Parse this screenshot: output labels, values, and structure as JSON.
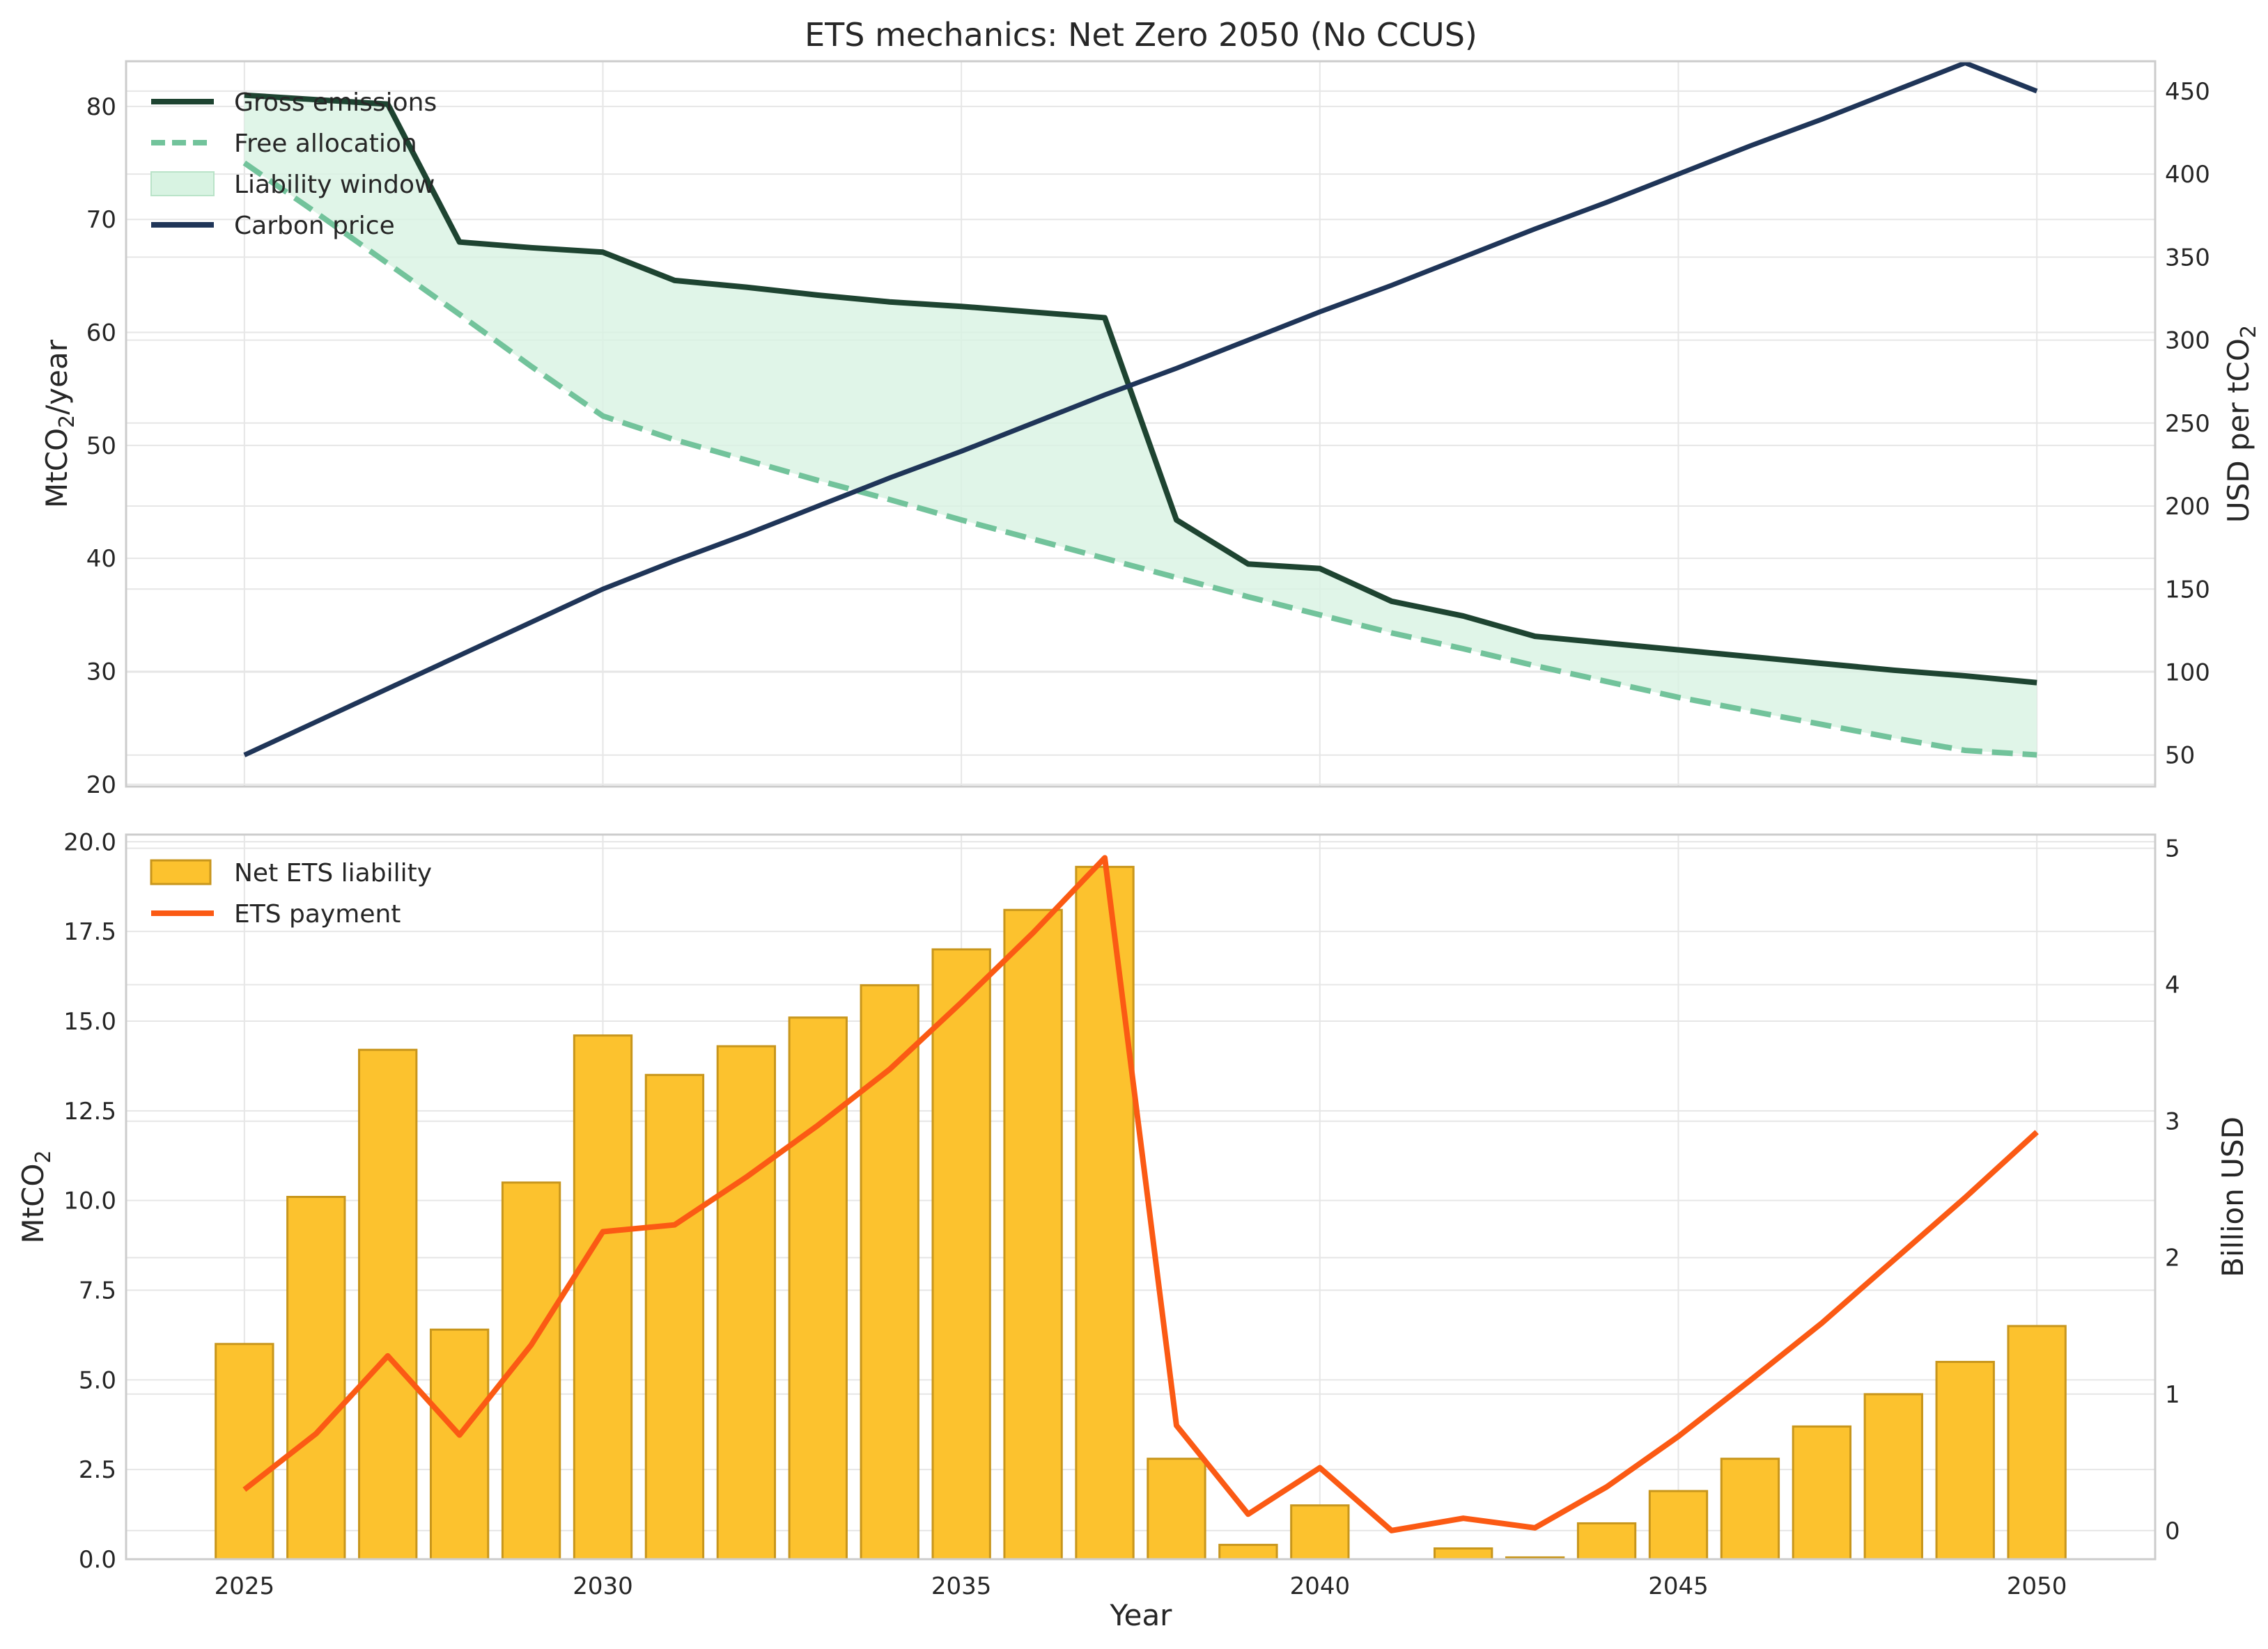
{
  "title": "ETS mechanics: Net Zero 2050 (No CCUS)",
  "colors": {
    "gross": "#1e4431",
    "free": "#72c39b",
    "window": "#d8f3e2",
    "price": "#1f3558",
    "bar_fill": "#fcc22e",
    "bar_edge": "#c8961c",
    "payment": "#fb5a14",
    "grid": "#e6e6e6",
    "spine": "#cccccc"
  },
  "chart_data": [
    {
      "type": "line",
      "name": "top",
      "x": [
        2025,
        2026,
        2027,
        2028,
        2029,
        2030,
        2031,
        2032,
        2033,
        2034,
        2035,
        2036,
        2037,
        2038,
        2039,
        2040,
        2041,
        2042,
        2043,
        2044,
        2045,
        2046,
        2047,
        2048,
        2049,
        2050
      ],
      "ylabel": "MtCO₂/year",
      "ylabel_parts": [
        "MtCO",
        "2",
        "/year"
      ],
      "y2label": "USD per tCO₂",
      "y2label_parts": [
        "USD per tCO",
        "2"
      ],
      "ylim": [
        19.8,
        84
      ],
      "y2lim": [
        31,
        468
      ],
      "yticks": [
        20,
        30,
        40,
        50,
        60,
        70,
        80
      ],
      "y2ticks": [
        50,
        100,
        150,
        200,
        250,
        300,
        350,
        400,
        450
      ],
      "grid": true,
      "legend": "top-left",
      "legend_entries": [
        "Gross emissions",
        "Free allocation",
        "Liability window",
        "Carbon price"
      ],
      "series": [
        {
          "name": "Gross emissions",
          "axis": "left",
          "style": "solid",
          "values": [
            81.0,
            80.6,
            80.2,
            68.0,
            67.5,
            67.1,
            64.6,
            64.0,
            63.3,
            62.7,
            62.3,
            61.8,
            61.3,
            43.4,
            39.5,
            39.1,
            36.2,
            34.9,
            33.1,
            32.5,
            31.9,
            31.3,
            30.7,
            30.1,
            29.6,
            29.0
          ]
        },
        {
          "name": "Free allocation",
          "axis": "left",
          "style": "dashed",
          "values": [
            75.0,
            70.6,
            66.1,
            61.6,
            57.0,
            52.6,
            50.5,
            48.7,
            46.9,
            45.2,
            43.4,
            41.7,
            40.0,
            38.3,
            36.6,
            35.0,
            33.4,
            32.0,
            30.5,
            29.1,
            27.7,
            26.5,
            25.3,
            24.1,
            23.0,
            22.6
          ]
        },
        {
          "name": "Carbon price",
          "axis": "right",
          "style": "solid",
          "values": [
            50,
            70,
            90,
            110,
            130,
            150,
            167,
            183,
            200,
            217,
            233,
            250,
            267,
            283,
            300,
            317,
            333,
            350,
            367,
            383,
            400,
            417,
            433,
            450,
            467,
            450
          ]
        }
      ],
      "fill": {
        "name": "Liability window",
        "between": [
          "Gross emissions",
          "Free allocation"
        ]
      }
    },
    {
      "type": "bar",
      "name": "bottom",
      "x": [
        2025,
        2026,
        2027,
        2028,
        2029,
        2030,
        2031,
        2032,
        2033,
        2034,
        2035,
        2036,
        2037,
        2038,
        2039,
        2040,
        2041,
        2042,
        2043,
        2044,
        2045,
        2046,
        2047,
        2048,
        2049,
        2050
      ],
      "xlabel": "Year",
      "xticks": [
        2025,
        2030,
        2035,
        2040,
        2045,
        2050
      ],
      "ylabel": "MtCO₂",
      "ylabel_parts": [
        "MtCO",
        "2",
        ""
      ],
      "y2label": "Billion USD",
      "ylim": [
        0,
        20.2
      ],
      "y2lim": [
        -0.21,
        5.1
      ],
      "yticks": [
        0.0,
        2.5,
        5.0,
        7.5,
        10.0,
        12.5,
        15.0,
        17.5,
        20.0
      ],
      "y2ticks": [
        0,
        1,
        2,
        3,
        4,
        5
      ],
      "grid": true,
      "legend": "top-left",
      "legend_entries": [
        "Net ETS liability",
        "ETS payment"
      ],
      "series": [
        {
          "name": "Net ETS liability",
          "axis": "left",
          "kind": "bar",
          "values": [
            6.0,
            10.1,
            14.2,
            6.4,
            10.5,
            14.6,
            13.5,
            14.3,
            15.1,
            16.0,
            17.0,
            18.1,
            19.3,
            2.8,
            0.4,
            1.5,
            0.0,
            0.3,
            0.05,
            1.0,
            1.9,
            2.8,
            3.7,
            4.6,
            5.5,
            6.5
          ]
        },
        {
          "name": "ETS payment",
          "axis": "right",
          "kind": "line",
          "values": [
            0.3,
            0.71,
            1.28,
            0.7,
            1.36,
            2.19,
            2.24,
            2.59,
            2.97,
            3.38,
            3.87,
            4.38,
            4.93,
            0.77,
            0.12,
            0.46,
            0.0,
            0.09,
            0.02,
            0.32,
            0.69,
            1.1,
            1.52,
            1.98,
            2.44,
            2.92
          ]
        }
      ]
    }
  ]
}
